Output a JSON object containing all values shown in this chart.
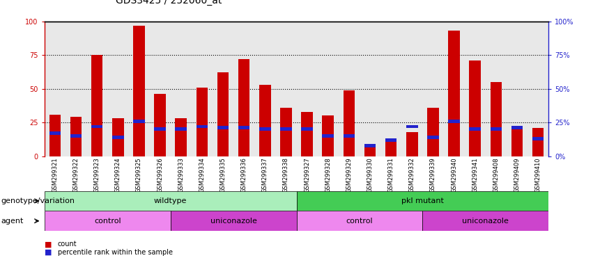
{
  "title": "GDS3425 / 252060_at",
  "samples": [
    "GSM299321",
    "GSM299322",
    "GSM299323",
    "GSM299324",
    "GSM299325",
    "GSM299326",
    "GSM299333",
    "GSM299334",
    "GSM299335",
    "GSM299336",
    "GSM299337",
    "GSM299338",
    "GSM299327",
    "GSM299328",
    "GSM299329",
    "GSM299330",
    "GSM299331",
    "GSM299332",
    "GSM299339",
    "GSM299340",
    "GSM299341",
    "GSM299408",
    "GSM299409",
    "GSM299410"
  ],
  "count_values": [
    31,
    29,
    75,
    28,
    97,
    46,
    28,
    51,
    62,
    72,
    53,
    36,
    33,
    30,
    49,
    8,
    13,
    18,
    36,
    93,
    71,
    55,
    20,
    21
  ],
  "percentile_values": [
    17,
    15,
    22,
    14,
    26,
    20,
    20,
    22,
    21,
    21,
    20,
    20,
    20,
    15,
    15,
    8,
    12,
    22,
    14,
    26,
    20,
    20,
    21,
    13
  ],
  "ylim": [
    0,
    100
  ],
  "left_yticks": [
    0,
    25,
    50,
    75,
    100
  ],
  "right_yticks": [
    0,
    25,
    50,
    75,
    100
  ],
  "bar_color": "#cc0000",
  "percentile_color": "#2222cc",
  "bg_color": "#d8d8d8",
  "plot_bg": "#e8e8e8",
  "genotype_groups": [
    {
      "label": "wildtype",
      "start": 0,
      "end": 12,
      "color": "#aaeebb"
    },
    {
      "label": "pkl mutant",
      "start": 12,
      "end": 24,
      "color": "#44cc55"
    }
  ],
  "agent_groups": [
    {
      "label": "control",
      "start": 0,
      "end": 6,
      "color": "#ee88ee"
    },
    {
      "label": "uniconazole",
      "start": 6,
      "end": 12,
      "color": "#cc44cc"
    },
    {
      "label": "control",
      "start": 12,
      "end": 18,
      "color": "#ee88ee"
    },
    {
      "label": "uniconazole",
      "start": 18,
      "end": 24,
      "color": "#cc44cc"
    }
  ],
  "legend_count_color": "#cc0000",
  "legend_percentile_color": "#2222cc",
  "title_fontsize": 10,
  "tick_fontsize": 6,
  "label_fontsize": 8,
  "annotation_fontsize": 8
}
